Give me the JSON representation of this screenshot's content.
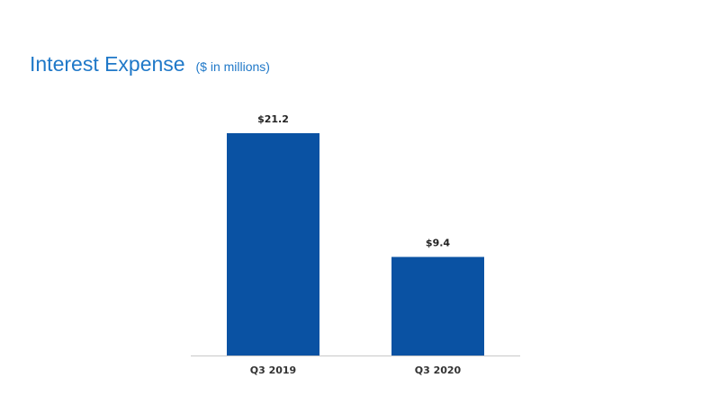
{
  "slide": {
    "title": "Interest Expense",
    "subtitle": "($ in millions)"
  },
  "colors": {
    "title": "#1f78c8",
    "bar": "#0a52a3",
    "axis": "#c8c8c8"
  },
  "chart_data": {
    "type": "bar",
    "categories": [
      "Q3 2019",
      "Q3 2020"
    ],
    "values": [
      21.2,
      9.4
    ],
    "data_labels": [
      "$21.2",
      "$9.4"
    ],
    "title": "Interest Expense",
    "subtitle": "($ in millions)",
    "xlabel": "",
    "ylabel": "",
    "ylim": [
      0,
      21.2
    ],
    "grid": false,
    "legend": "none"
  }
}
